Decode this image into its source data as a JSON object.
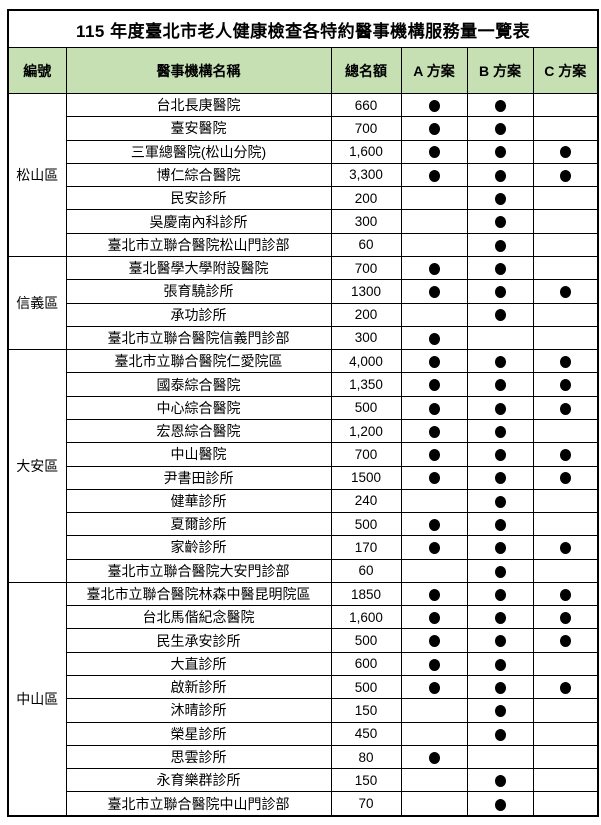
{
  "title": "115 年度臺北市老人健康檢查各特約醫事機構服務量一覽表",
  "columns": {
    "id": "編號",
    "name": "醫事機構名稱",
    "quota": "總名額",
    "plan_a": "A 方案",
    "plan_b": "B 方案",
    "plan_c": "C 方案"
  },
  "colors": {
    "header_bg": "#c6e0b4",
    "border": "#000000",
    "dot": "#000000"
  },
  "dot_meaning": "offers-plan",
  "districts": [
    {
      "name": "松山區",
      "rows": [
        {
          "name": "台北長庚醫院",
          "quota": "660",
          "plans": [
            true,
            true,
            false
          ]
        },
        {
          "name": "臺安醫院",
          "quota": "700",
          "plans": [
            true,
            true,
            false
          ]
        },
        {
          "name": "三軍總醫院(松山分院)",
          "quota": "1,600",
          "plans": [
            true,
            true,
            true
          ]
        },
        {
          "name": "博仁綜合醫院",
          "quota": "3,300",
          "plans": [
            true,
            true,
            true
          ]
        },
        {
          "name": "民安診所",
          "quota": "200",
          "plans": [
            false,
            true,
            false
          ]
        },
        {
          "name": "吳慶南內科診所",
          "quota": "300",
          "plans": [
            false,
            true,
            false
          ]
        },
        {
          "name": "臺北市立聯合醫院松山門診部",
          "quota": "60",
          "plans": [
            false,
            true,
            false
          ]
        }
      ]
    },
    {
      "name": "信義區",
      "rows": [
        {
          "name": "臺北醫學大學附設醫院",
          "quota": "700",
          "plans": [
            true,
            true,
            false
          ]
        },
        {
          "name": "張育驍診所",
          "quota": "1300",
          "plans": [
            true,
            true,
            true
          ]
        },
        {
          "name": "承功診所",
          "quota": "200",
          "plans": [
            false,
            true,
            false
          ]
        },
        {
          "name": "臺北市立聯合醫院信義門診部",
          "quota": "300",
          "plans": [
            true,
            false,
            false
          ]
        }
      ]
    },
    {
      "name": "大安區",
      "rows": [
        {
          "name": "臺北市立聯合醫院仁愛院區",
          "quota": "4,000",
          "plans": [
            true,
            true,
            true
          ]
        },
        {
          "name": "國泰綜合醫院",
          "quota": "1,350",
          "plans": [
            true,
            true,
            true
          ]
        },
        {
          "name": "中心綜合醫院",
          "quota": "500",
          "plans": [
            true,
            true,
            true
          ]
        },
        {
          "name": "宏恩綜合醫院",
          "quota": "1,200",
          "plans": [
            true,
            true,
            false
          ]
        },
        {
          "name": "中山醫院",
          "quota": "700",
          "plans": [
            true,
            true,
            true
          ]
        },
        {
          "name": "尹書田診所",
          "quota": "1500",
          "plans": [
            true,
            true,
            true
          ]
        },
        {
          "name": "健華診所",
          "quota": "240",
          "plans": [
            false,
            true,
            false
          ]
        },
        {
          "name": "夏爾診所",
          "quota": "500",
          "plans": [
            true,
            true,
            false
          ]
        },
        {
          "name": "家齡診所",
          "quota": "170",
          "plans": [
            true,
            true,
            true
          ]
        },
        {
          "name": "臺北市立聯合醫院大安門診部",
          "quota": "60",
          "plans": [
            false,
            true,
            false
          ]
        }
      ]
    },
    {
      "name": "中山區",
      "rows": [
        {
          "name": "臺北市立聯合醫院林森中醫昆明院區",
          "quota": "1850",
          "plans": [
            true,
            true,
            true
          ]
        },
        {
          "name": "台北馬偕紀念醫院",
          "quota": "1,600",
          "plans": [
            true,
            true,
            true
          ]
        },
        {
          "name": "民生承安診所",
          "quota": "500",
          "plans": [
            true,
            true,
            true
          ]
        },
        {
          "name": "大直診所",
          "quota": "600",
          "plans": [
            true,
            true,
            false
          ]
        },
        {
          "name": "啟新診所",
          "quota": "500",
          "plans": [
            true,
            true,
            true
          ]
        },
        {
          "name": "沐晴診所",
          "quota": "150",
          "plans": [
            false,
            true,
            false
          ]
        },
        {
          "name": "榮星診所",
          "quota": "450",
          "plans": [
            false,
            true,
            false
          ]
        },
        {
          "name": "思雲診所",
          "quota": "80",
          "plans": [
            true,
            false,
            false
          ]
        },
        {
          "name": "永育樂群診所",
          "quota": "150",
          "plans": [
            false,
            true,
            false
          ]
        },
        {
          "name": "臺北市立聯合醫院中山門診部",
          "quota": "70",
          "plans": [
            false,
            true,
            false
          ]
        }
      ]
    }
  ]
}
